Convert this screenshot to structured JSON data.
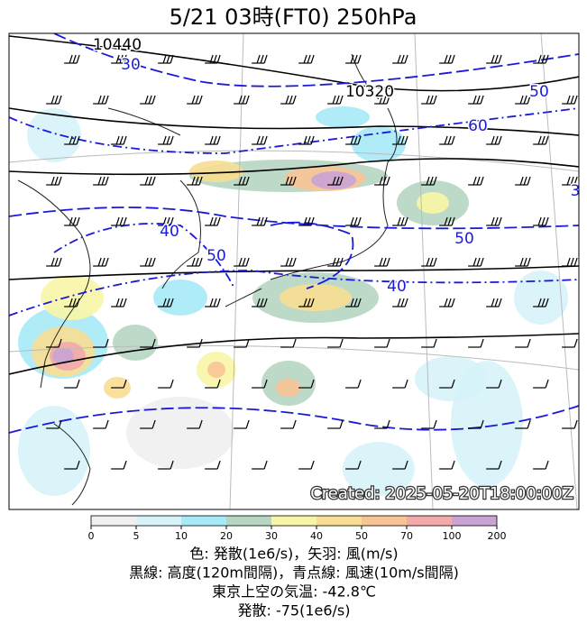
{
  "header": {
    "title": "5/21  03時(FT0)    250hPa"
  },
  "map": {
    "contour_labels": [
      "10440",
      "10320",
      "50",
      "60",
      "40",
      "50",
      "50",
      "40",
      "30",
      "3"
    ],
    "stamp": "Created: 2025-05-20T18:00:00Z"
  },
  "colorbar": {
    "ticks": [
      "0",
      "5",
      "10",
      "20",
      "30",
      "40",
      "50",
      "70",
      "100",
      "200"
    ],
    "colors": [
      "#f0f0f0",
      "#d6f3fa",
      "#a6eaf7",
      "#b6d6c2",
      "#f8f6a6",
      "#f8de92",
      "#f8c496",
      "#f4a9ab",
      "#c9a3d3"
    ]
  },
  "caption": [
    "色: 発散(1e6/s)，矢羽: 風(m/s)",
    "黒線: 高度(120m間隔)，青点線: 風速(10m/s間隔)",
    "東京上空の気温: -42.8℃",
    "発散: -75(1e6/s)"
  ]
}
